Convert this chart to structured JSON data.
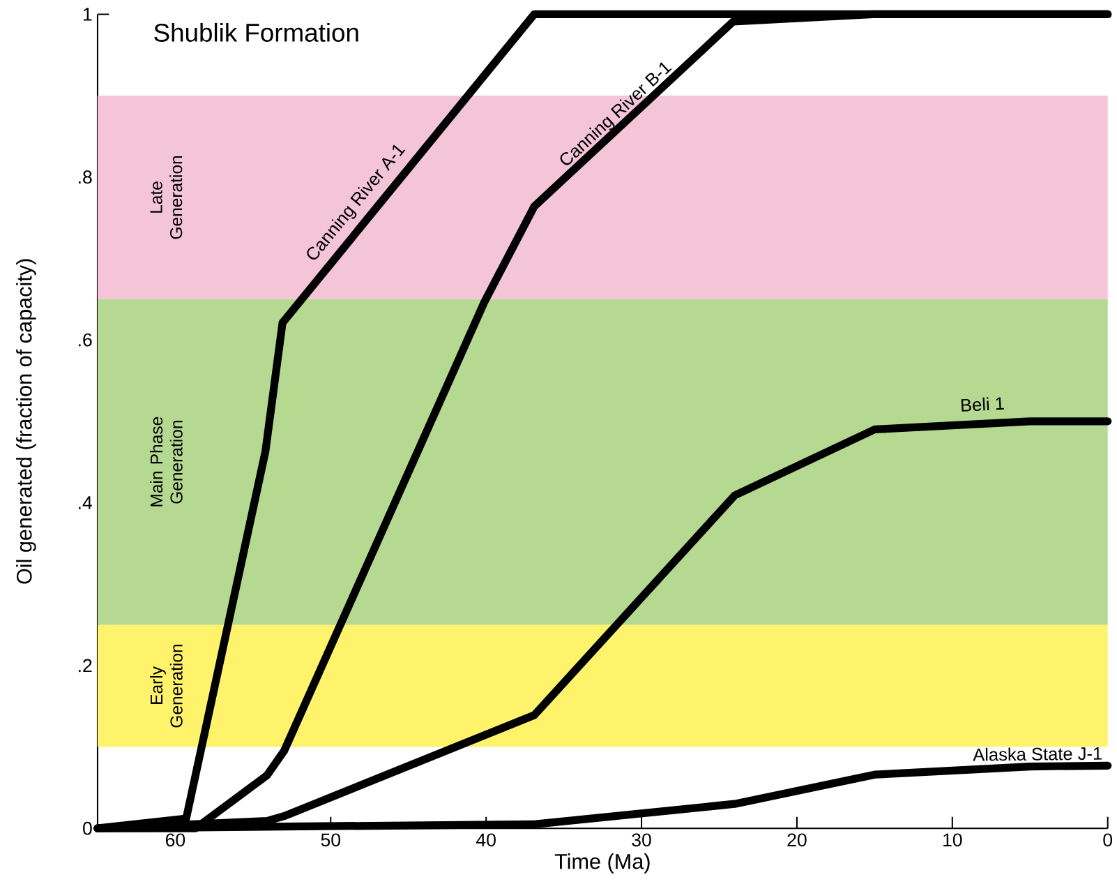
{
  "chart_data": {
    "type": "line",
    "title": "Shublik Formation",
    "xlabel": "Time (Ma)",
    "ylabel": "Oil generated (fraction of capacity)",
    "xlim": [
      65,
      0
    ],
    "ylim": [
      0,
      1
    ],
    "xticks": [
      60,
      50,
      40,
      30,
      20,
      10,
      0
    ],
    "yticks": [
      0,
      {
        "value": 0.2,
        "label": ".2"
      },
      {
        "value": 0.4,
        "label": ".4"
      },
      {
        "value": 0.6,
        "label": ".6"
      },
      {
        "value": 0.8,
        "label": ".8"
      },
      1
    ],
    "grid": false,
    "legend": false,
    "marker": "none",
    "line_style": "solid",
    "bands": [
      {
        "axis": "y",
        "from": 0.1,
        "to": 0.25,
        "label": "Early Generation",
        "color": "#fff36b"
      },
      {
        "axis": "y",
        "from": 0.25,
        "to": 0.65,
        "label": "Main Phase Generation",
        "color": "#b5d991"
      },
      {
        "axis": "y",
        "from": 0.65,
        "to": 0.9,
        "label": "Late Generation",
        "color": "#f4c4d7"
      }
    ],
    "series": [
      {
        "name": "Canning River A-1",
        "color": "#000000",
        "x": [
          65,
          59.3,
          54.2,
          53.1,
          36.9,
          0
        ],
        "values": [
          0,
          0.012,
          0.463,
          0.621,
          1,
          1
        ]
      },
      {
        "name": "Canning River B-1",
        "color": "#000000",
        "x": [
          65,
          58.7,
          54.1,
          53.0,
          40.1,
          36.9,
          24.1,
          15.1,
          0
        ],
        "values": [
          0,
          0,
          0.065,
          0.095,
          0.647,
          0.764,
          0.991,
          1,
          1
        ]
      },
      {
        "name": "Beli 1",
        "color": "#000000",
        "x": [
          65,
          54.1,
          53.0,
          36.9,
          24.0,
          15.0,
          5.0,
          0
        ],
        "values": [
          0,
          0.009,
          0.015,
          0.139,
          0.409,
          0.49,
          0.5,
          0.5
        ]
      },
      {
        "name": "Alaska State J-1",
        "color": "#000000",
        "x": [
          65,
          36.9,
          24.0,
          15.0,
          5.0,
          0
        ],
        "values": [
          0,
          0.005,
          0.03,
          0.066,
          0.076,
          0.077
        ]
      }
    ]
  }
}
